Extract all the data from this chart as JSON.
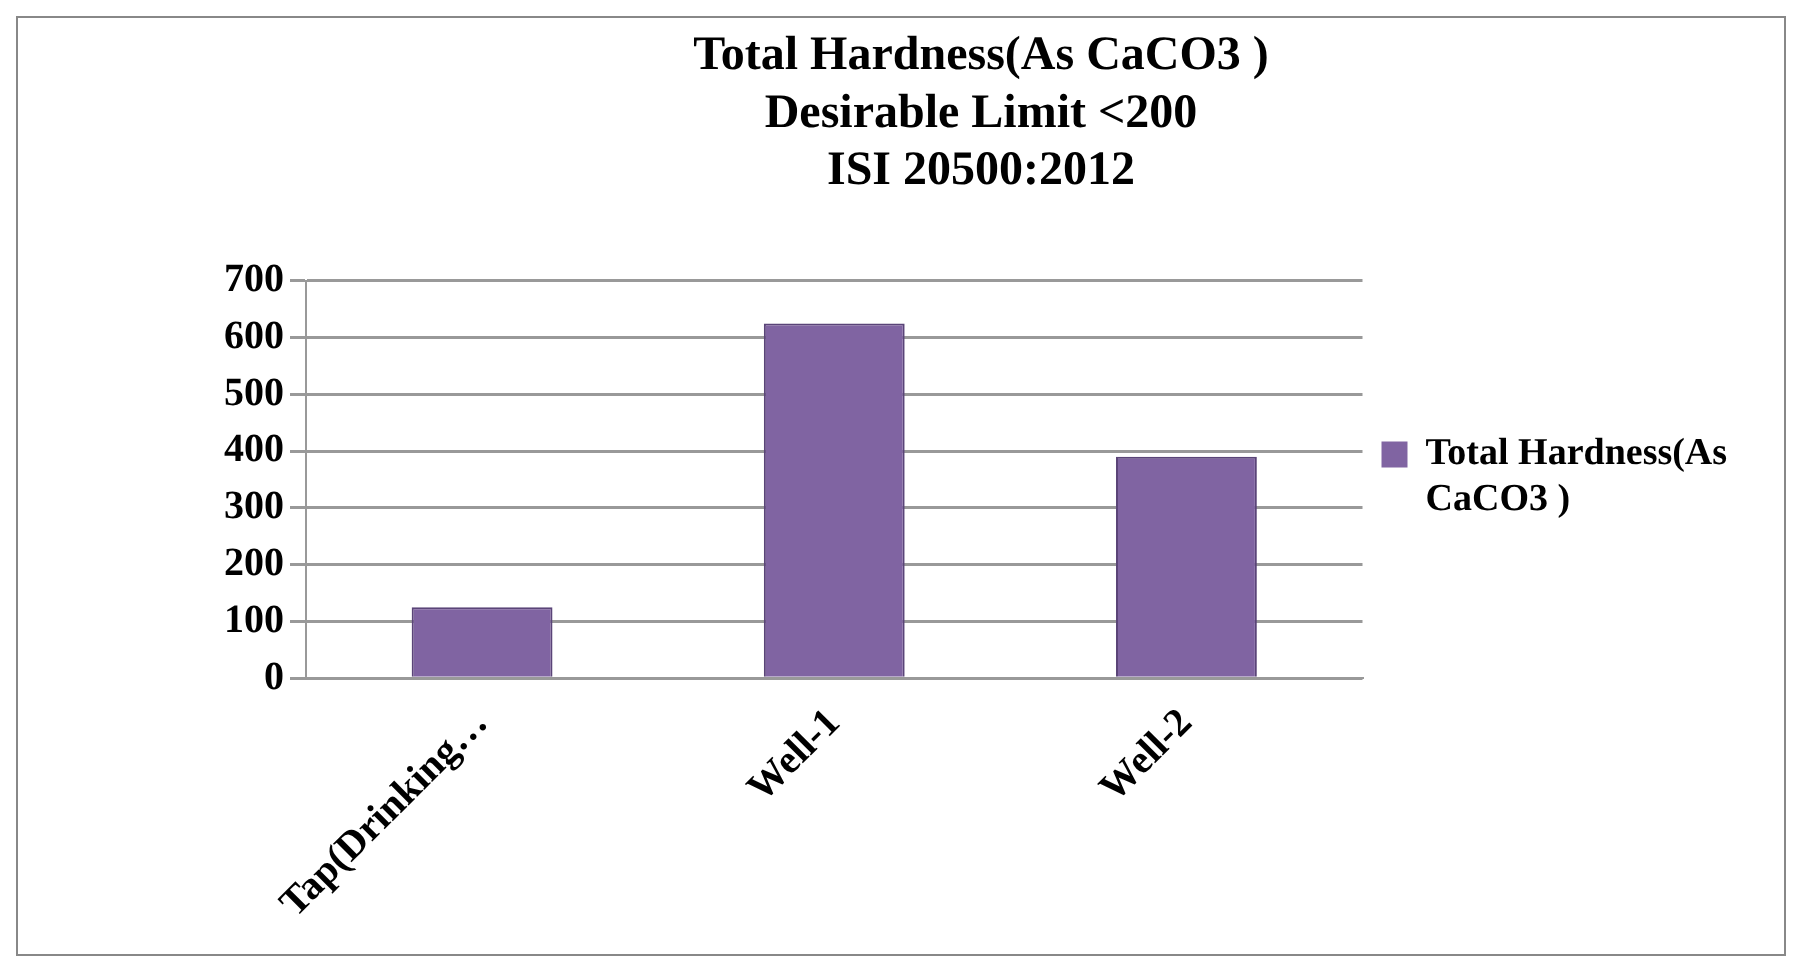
{
  "chart_data": {
    "type": "bar",
    "title": "Total Hardness(As CaCO3 )\nDesirable Limit <200\nISI 20500:2012",
    "categories": [
      "Tap(Drinking…",
      "Well-1",
      "Well-2"
    ],
    "series": [
      {
        "name": "Total Hardness(As CaCO3 )",
        "color": "#8064a2",
        "values": [
          125,
          625,
          390
        ]
      }
    ],
    "ylim": [
      0,
      700
    ],
    "yticks": [
      0,
      100,
      200,
      300,
      400,
      500,
      600,
      700
    ],
    "grid": "y",
    "legend": "right"
  }
}
